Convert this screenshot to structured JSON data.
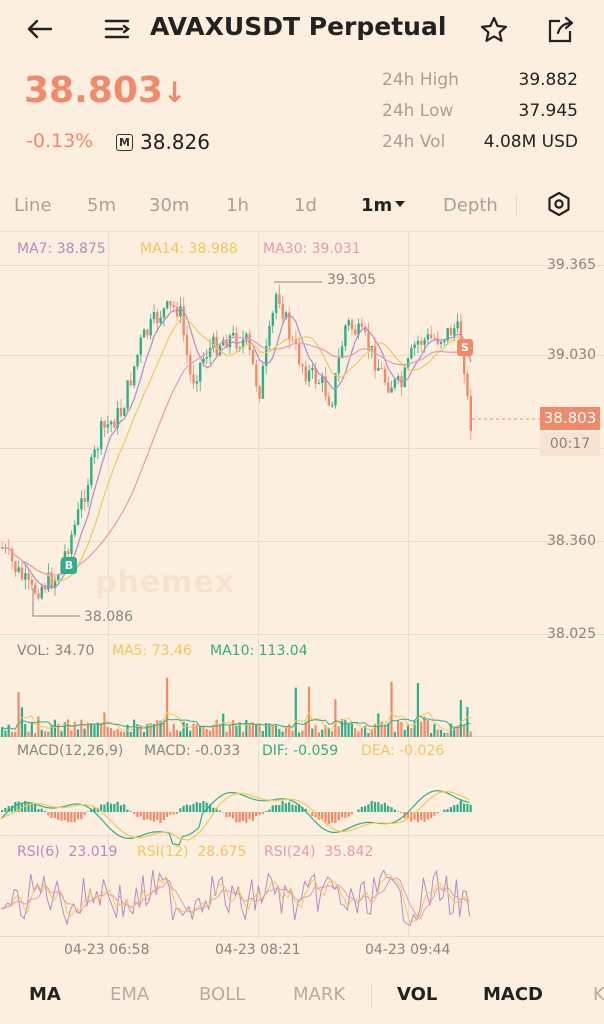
{
  "header": {
    "title": "AVAXUSDT Perpetual",
    "back_icon": "arrow-left-icon",
    "menu_icon": "switch-icon",
    "star_icon": "star-icon",
    "share_icon": "share-icon"
  },
  "ticker": {
    "last_price": "38.803",
    "direction_glyph": "↓",
    "change_pct": "-0.13%",
    "mark_badge": "M",
    "mark_price": "38.826"
  },
  "stats": [
    {
      "label": "24h High",
      "value": "39.882"
    },
    {
      "label": "24h Low",
      "value": "37.945"
    },
    {
      "label": "24h Vol",
      "value": "4.08M USD"
    }
  ],
  "tabs": [
    "Line",
    "5m",
    "30m",
    "1h",
    "1d",
    "1m",
    "Depth"
  ],
  "tabs_active": "1m",
  "tabs_settings_icon": "hexagon-settings-icon",
  "ma_legend": {
    "ma7": "MA7: 38.875",
    "ma14": "MA14: 38.988",
    "ma30": "MA30: 39.031"
  },
  "price_axis": [
    "39.365",
    "39.030",
    "38.360",
    "38.025"
  ],
  "annotations": {
    "high": "39.305",
    "low": "38.086",
    "buy": "B",
    "sell": "S",
    "last_price_tag": "38.803",
    "countdown": "00:17",
    "watermark": "phemex"
  },
  "vol_legend": {
    "vol": "VOL: 34.70",
    "ma5": "MA5: 73.46",
    "ma10": "MA10: 113.04"
  },
  "macd_legend": {
    "name": "MACD(12,26,9)",
    "macd": "MACD: -0.033",
    "dif": "DIF: -0.059",
    "dea": "DEA: -0.026"
  },
  "rsi_legend": {
    "rsi6": "RSI(6)  23.019",
    "rsi12": "RSI(12)  28.675",
    "rsi24": "RSI(24)  35.842"
  },
  "time_axis": [
    "04-23 06:58",
    "04-23 08:21",
    "04-23 09:44"
  ],
  "bottom_tabs": [
    "MA",
    "EMA",
    "BOLL",
    "MARK",
    "VOL",
    "MACD",
    "K"
  ],
  "colors": {
    "bg": "#fdefe0",
    "up": "#2fae88",
    "down": "#f08a6a",
    "ma7": "#b58ac3",
    "ma14": "#f1c75a",
    "ma30": "#e49ab6"
  }
}
